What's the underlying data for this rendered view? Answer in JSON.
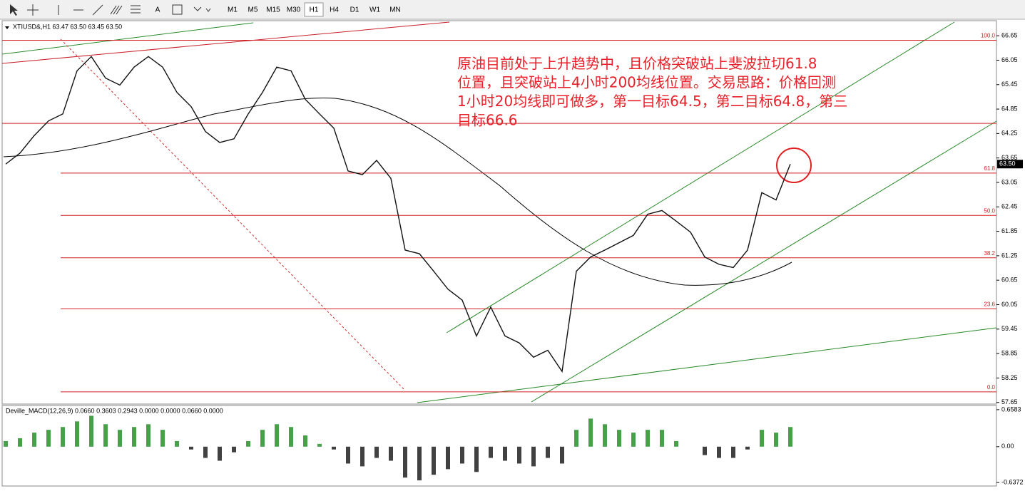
{
  "toolbar": {
    "text_button": "A",
    "timeframes": [
      "M1",
      "M5",
      "M15",
      "M30",
      "H1",
      "H4",
      "D1",
      "W1",
      "MN"
    ],
    "active": "H1"
  },
  "main": {
    "header": "XTIUSD&,H1  63.47 63.50 63.45 63.50",
    "annotation": [
      "原油目前处于上升趋势中，且价格突破站上斐波拉切61.8",
      "位置，且突破站上4小时200均线位置。交易思路：价格回测",
      "1小时20均线即可做多，第一目标64.5，第二目标64.8，第三",
      "目标66.6"
    ],
    "ylim": [
      57.61,
      67.02
    ],
    "yticks": [
      66.65,
      66.05,
      65.45,
      64.85,
      64.25,
      63.65,
      63.05,
      62.45,
      61.85,
      61.25,
      60.65,
      60.05,
      59.45,
      58.85,
      58.25,
      57.65
    ],
    "current_price": {
      "value": 63.5,
      "label": "63.50"
    },
    "target_line": 64.5,
    "fib_levels": [
      {
        "label": "100.0",
        "price": 66.54
      },
      {
        "label": "61.8",
        "price": 63.28
      },
      {
        "label": "50.0",
        "price": 62.24
      },
      {
        "label": "38.2",
        "price": 61.2
      },
      {
        "label": "23.6",
        "price": 59.95
      },
      {
        "label": "0.0",
        "price": 57.91
      }
    ],
    "closes": [
      63.5,
      63.77,
      64.2,
      64.56,
      64.73,
      65.79,
      66.14,
      65.61,
      65.44,
      65.88,
      66.14,
      65.88,
      65.26,
      64.91,
      64.3,
      64.03,
      64.12,
      64.73,
      65.26,
      65.88,
      65.79,
      65.09,
      64.73,
      64.38,
      63.33,
      63.24,
      63.59,
      63.15,
      61.39,
      61.3,
      60.87,
      60.43,
      60.16,
      59.28,
      59.99,
      59.28,
      59.11,
      58.76,
      58.93,
      58.41,
      60.87,
      61.22,
      61.39,
      61.57,
      61.75,
      62.27,
      62.36,
      62.1,
      61.83,
      61.22,
      61.04,
      60.96,
      61.39,
      62.8,
      62.62,
      63.5
    ]
  },
  "macd": {
    "header": "Deville_MACD(12,26,9) 0.0660 0.3603 0.2943 0.0000 0.0000 0.0660 0.0000",
    "ylim": [
      -0.7,
      0.733
    ],
    "yticks": [
      0.6583,
      {
        "value": 0,
        "label": "0.00"
      },
      -0.6372
    ],
    "values": [
      0.1,
      0.15,
      0.25,
      0.3,
      0.35,
      0.45,
      0.55,
      0.4,
      0.3,
      0.35,
      0.4,
      0.3,
      0.1,
      -0.05,
      -0.2,
      -0.25,
      -0.1,
      0.1,
      0.3,
      0.4,
      0.35,
      0.2,
      0.05,
      -0.05,
      -0.3,
      -0.35,
      -0.2,
      -0.25,
      -0.55,
      -0.6,
      -0.5,
      -0.4,
      -0.3,
      -0.45,
      -0.2,
      -0.25,
      -0.3,
      -0.35,
      -0.2,
      -0.3,
      0.3,
      0.5,
      0.4,
      0.3,
      0.25,
      0.3,
      0.3,
      0.1,
      0.0,
      -0.15,
      -0.2,
      -0.2,
      -0.05,
      0.3,
      0.25,
      0.35
    ]
  }
}
